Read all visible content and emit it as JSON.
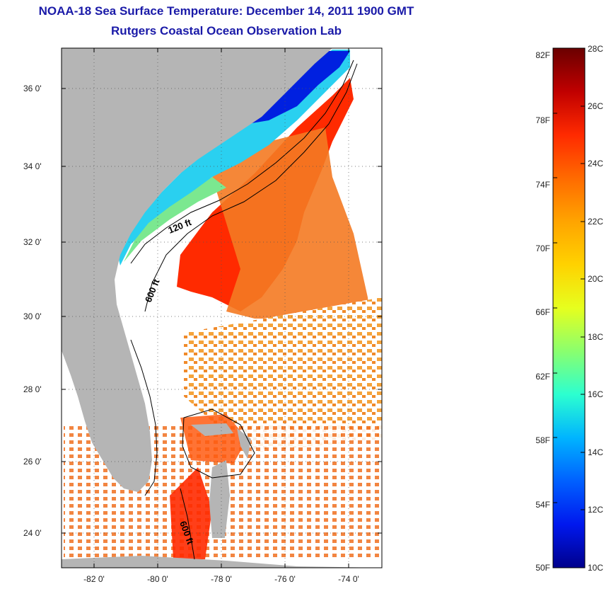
{
  "title": "NOAA-18 Sea Surface Temperature:  December 14, 2011 1900 GMT",
  "subtitle": "Rutgers Coastal Ocean Observation Lab",
  "map": {
    "lat_labels": [
      "36 0'",
      "34 0'",
      "32 0'",
      "30 0'",
      "28 0'",
      "26 0'",
      "24 0'"
    ],
    "lon_labels": [
      "-82 0'",
      "-80 0'",
      "-78 0'",
      "-76 0'",
      "-74 0'"
    ],
    "contour_labels": [
      "120 ft",
      "600 ft",
      "600 ft"
    ],
    "land_color": "#b5b5b5",
    "nodata_color": "#ffffff"
  },
  "colorbar": {
    "fahrenheit_labels": [
      "82F",
      "78F",
      "74F",
      "70F",
      "66F",
      "62F",
      "58F",
      "54F",
      "50F"
    ],
    "celsius_labels": [
      "28C",
      "26C",
      "24C",
      "22C",
      "20C",
      "18C",
      "16C",
      "14C",
      "12C",
      "10C"
    ],
    "min_c": 10,
    "max_c": 28,
    "colors_top_to_bottom": [
      "#6a0000",
      "#c00000",
      "#ff2a00",
      "#ff6a00",
      "#ffa400",
      "#ffd200",
      "#e6ff1e",
      "#8aff6e",
      "#2cffd0",
      "#00b4ff",
      "#0060ff",
      "#0018ee",
      "#00008c"
    ]
  }
}
